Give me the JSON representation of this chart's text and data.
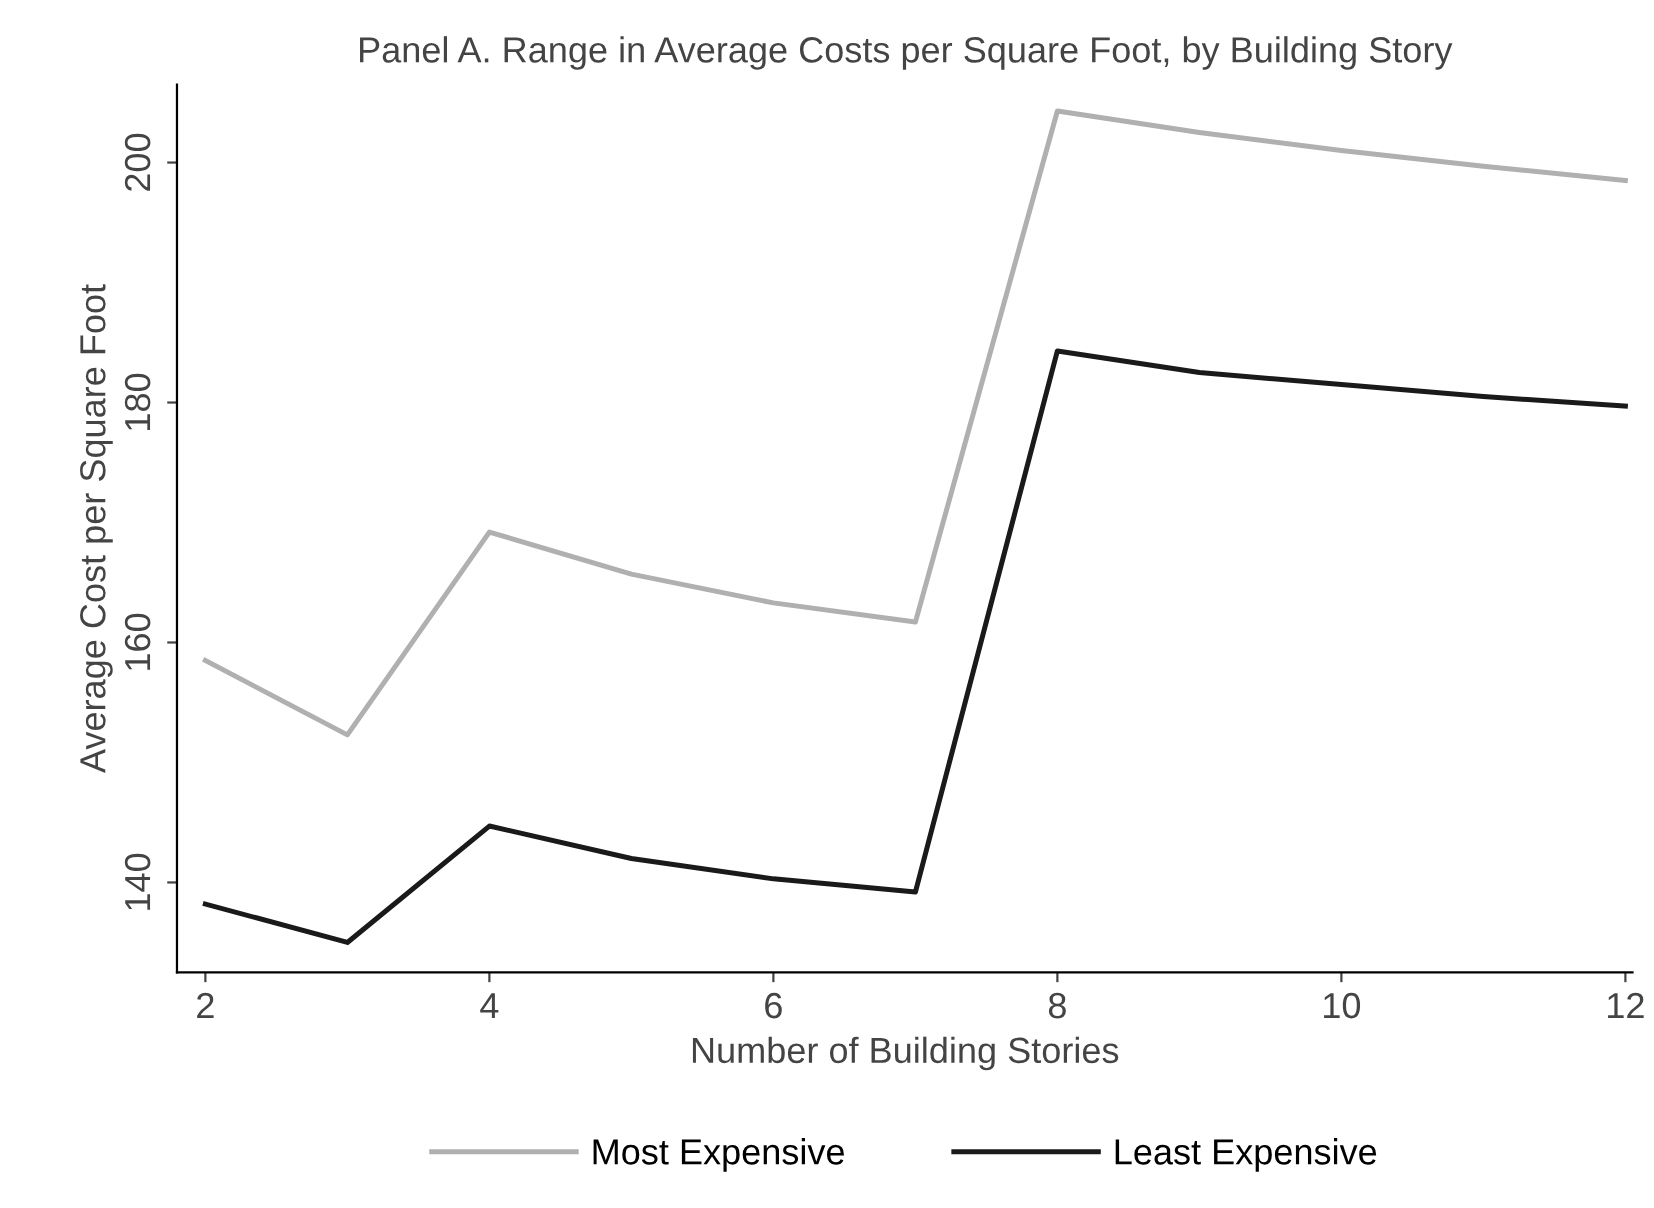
{
  "chart_data": {
    "type": "line",
    "title": "Panel A. Range in Average Costs per Square Foot, by Building Story",
    "xlabel": "Number of Building Stories",
    "ylabel": "Average Cost per Square Foot",
    "x": [
      2,
      3,
      4,
      5,
      6,
      7,
      8,
      9,
      10,
      11,
      12
    ],
    "series": [
      {
        "name": "Most Expensive",
        "color": "#b0b0b0",
        "values": [
          158.5,
          152.3,
          169.2,
          165.7,
          163.3,
          161.7,
          204.3,
          202.5,
          201,
          199.7,
          198.5
        ]
      },
      {
        "name": "Least Expensive",
        "color": "#1a1a1a",
        "values": [
          138.2,
          135,
          144.7,
          142,
          140.3,
          139.2,
          184.3,
          182.5,
          181.5,
          180.5,
          179.7
        ]
      }
    ],
    "xlim": [
      1.8,
      12.05
    ],
    "ylim": [
      132.5,
      206.5
    ],
    "xticks": [
      2,
      4,
      6,
      8,
      10,
      12
    ],
    "yticks": [
      140,
      160,
      180,
      200
    ],
    "grid": false,
    "legend": "bottom",
    "marker": "none",
    "line_style": "solid"
  }
}
